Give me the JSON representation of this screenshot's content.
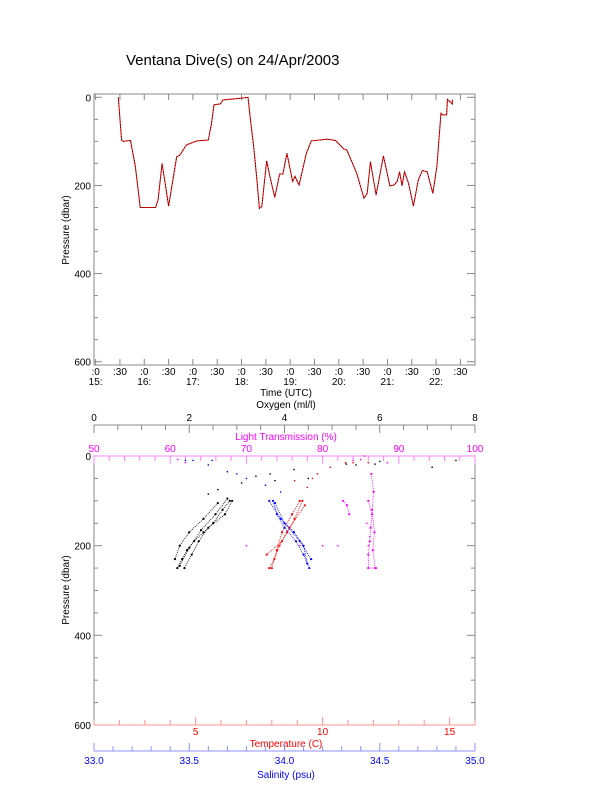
{
  "title": "Ventana Dive(s) on 24/Apr/2003",
  "chart_data": [
    {
      "type": "line",
      "xlabel": "Time (UTC)",
      "ylabel": "Pressure (dbar)",
      "ylim": [
        600,
        0
      ],
      "xlim": [
        "14:58",
        "22:48"
      ],
      "grid": false,
      "yticks": [
        "0",
        "200",
        "400",
        "600"
      ],
      "xticks": [
        {
          "time": "15:00",
          "top": ":0",
          "bottom": "15:"
        },
        {
          "time": "15:30",
          "top": ":30",
          "bottom": ""
        },
        {
          "time": "16:00",
          "top": ":0",
          "bottom": "16:"
        },
        {
          "time": "16:30",
          "top": ":30",
          "bottom": ""
        },
        {
          "time": "17:00",
          "top": ":0",
          "bottom": "17:"
        },
        {
          "time": "17:30",
          "top": ":30",
          "bottom": ""
        },
        {
          "time": "18:00",
          "top": ":0",
          "bottom": "18:"
        },
        {
          "time": "18:30",
          "top": ":30",
          "bottom": ""
        },
        {
          "time": "19:00",
          "top": ":0",
          "bottom": "19:"
        },
        {
          "time": "19:30",
          "top": ":30",
          "bottom": ""
        },
        {
          "time": "20:00",
          "top": ":0",
          "bottom": "20:"
        },
        {
          "time": "20:30",
          "top": ":30",
          "bottom": ""
        },
        {
          "time": "21:00",
          "top": ":0",
          "bottom": "21:"
        },
        {
          "time": "21:30",
          "top": ":30",
          "bottom": ""
        },
        {
          "time": "22:00",
          "top": ":0",
          "bottom": "22:"
        },
        {
          "time": "22:30",
          "top": ":30",
          "bottom": ""
        }
      ],
      "line_color": "#ff0000",
      "series": [
        {
          "points": [
            [
              "15:28",
              0
            ],
            [
              "15:32",
              97
            ],
            [
              "15:34",
              100
            ],
            [
              "15:43",
              98
            ],
            [
              "15:49",
              157
            ],
            [
              "15:52",
              203
            ],
            [
              "15:55",
              250
            ],
            [
              "16:14",
              250
            ],
            [
              "16:17",
              233
            ],
            [
              "16:22",
              150
            ],
            [
              "16:27",
              210
            ],
            [
              "16:30",
              247
            ],
            [
              "16:40",
              135
            ],
            [
              "16:44",
              131
            ],
            [
              "16:52",
              108
            ],
            [
              "17:05",
              99
            ],
            [
              "17:19",
              97
            ],
            [
              "17:23",
              59
            ],
            [
              "17:26",
              17
            ],
            [
              "17:34",
              15
            ],
            [
              "17:37",
              6
            ],
            [
              "18:00",
              2
            ],
            [
              "18:08",
              0
            ],
            [
              "18:11",
              51
            ],
            [
              "18:15",
              112
            ],
            [
              "18:19",
              188
            ],
            [
              "18:22",
              252
            ],
            [
              "18:25",
              248
            ],
            [
              "18:31",
              144
            ],
            [
              "18:35",
              180
            ],
            [
              "18:41",
              227
            ],
            [
              "18:47",
              174
            ],
            [
              "18:51",
              174
            ],
            [
              "18:56",
              127
            ],
            [
              "19:03",
              191
            ],
            [
              "19:06",
              179
            ],
            [
              "19:08",
              188
            ],
            [
              "19:11",
              199
            ],
            [
              "19:20",
              127
            ],
            [
              "19:26",
              99
            ],
            [
              "19:46",
              95
            ],
            [
              "19:56",
              98
            ],
            [
              "20:06",
              117
            ],
            [
              "20:10",
              120
            ],
            [
              "20:22",
              172
            ],
            [
              "20:31",
              229
            ],
            [
              "20:35",
              218
            ],
            [
              "20:39",
              146
            ],
            [
              "20:46",
              222
            ],
            [
              "20:55",
              133
            ],
            [
              "21:03",
              201
            ],
            [
              "21:08",
              199
            ],
            [
              "21:12",
              191
            ],
            [
              "21:15",
              169
            ],
            [
              "21:18",
              201
            ],
            [
              "21:21",
              169
            ],
            [
              "21:26",
              195
            ],
            [
              "21:32",
              247
            ],
            [
              "21:38",
              188
            ],
            [
              "21:43",
              166
            ],
            [
              "21:49",
              169
            ],
            [
              "21:56",
              218
            ],
            [
              "22:01",
              157
            ],
            [
              "22:06",
              36
            ],
            [
              "22:08",
              40
            ],
            [
              "22:13",
              40
            ],
            [
              "22:14",
              5
            ],
            [
              "22:20",
              15
            ],
            [
              "22:20",
              5
            ]
          ]
        }
      ]
    },
    {
      "type": "scatter",
      "ylabel": "Pressure (dbar)",
      "ylim": [
        600,
        0
      ],
      "yticks": [
        "0",
        "200",
        "400",
        "600"
      ],
      "grid": false,
      "series": [
        {
          "name": "Oxygen (ml/l)",
          "axis": "top",
          "range": [
            0,
            8
          ],
          "color": "#000000",
          "ticks": [
            "0",
            "2",
            "4",
            "6",
            "8"
          ],
          "casts": [
            [
              [
                2.85,
                100
              ],
              [
                2.7,
                120
              ],
              [
                2.5,
                150
              ],
              [
                2.3,
                170
              ],
              [
                2.1,
                190
              ],
              [
                1.95,
                210
              ],
              [
                1.85,
                230
              ],
              [
                1.75,
                250
              ]
            ],
            [
              [
                2.9,
                100
              ],
              [
                2.75,
                130
              ],
              [
                2.4,
                160
              ],
              [
                2.2,
                190
              ],
              [
                2.05,
                220
              ],
              [
                1.9,
                250
              ]
            ],
            [
              [
                2.6,
                105
              ],
              [
                2.3,
                140
              ],
              [
                2.0,
                170
              ],
              [
                1.8,
                200
              ],
              [
                1.7,
                230
              ]
            ],
            [
              [
                2.8,
                95
              ],
              [
                2.55,
                130
              ],
              [
                2.25,
                165
              ],
              [
                2.0,
                205
              ],
              [
                1.8,
                245
              ]
            ]
          ],
          "points": [
            [
              5.3,
              18
            ],
            [
              5.9,
              18
            ],
            [
              5.5,
              20
            ],
            [
              3.7,
              40
            ],
            [
              4.2,
              30
            ],
            [
              3.4,
              45
            ],
            [
              2.6,
              75
            ],
            [
              2.4,
              85
            ],
            [
              4.5,
              50
            ],
            [
              3.8,
              55
            ],
            [
              6.0,
              12
            ],
            [
              7.1,
              25
            ],
            [
              7.6,
              10
            ],
            [
              3.1,
              60
            ]
          ]
        },
        {
          "name": "Light Transmission (%)",
          "axis": "top2",
          "range": [
            50,
            100
          ],
          "color": "#ff00ff",
          "ticks": [
            "50",
            "60",
            "70",
            "80",
            "90",
            "100"
          ],
          "casts": [
            [
              [
                86.0,
                100
              ],
              [
                86.5,
                130
              ],
              [
                86.3,
                160
              ],
              [
                86.2,
                190
              ],
              [
                86.0,
                220
              ],
              [
                86.0,
                250
              ],
              [
                87.0,
                250
              ]
            ],
            [
              [
                82.7,
                100
              ],
              [
                83.2,
                110
              ],
              [
                83.5,
                130
              ]
            ],
            [
              [
                86.4,
                40
              ],
              [
                86.7,
                80
              ],
              [
                86.5,
                120
              ],
              [
                86.8,
                170
              ],
              [
                86.6,
                210
              ],
              [
                86.9,
                250
              ]
            ]
          ],
          "points": [
            [
              84.0,
              10
            ],
            [
              85.0,
              8
            ],
            [
              85.5,
              0
            ],
            [
              88.5,
              15
            ],
            [
              82.0,
              200
            ],
            [
              80.0,
              200
            ],
            [
              77.0,
              200
            ],
            [
              70.0,
              200
            ],
            [
              61.0,
              8
            ],
            [
              62.0,
              15
            ],
            [
              86.0,
              200
            ],
            [
              86.2,
              180
            ],
            [
              85.8,
              150
            ]
          ]
        },
        {
          "name": "Temperature (C)",
          "axis": "bottom",
          "range": [
            1,
            16
          ],
          "color": "#ff0000",
          "ticks": [
            "5",
            "10",
            "15"
          ],
          "casts": [
            [
              [
                9.2,
                100
              ],
              [
                8.9,
                140
              ],
              [
                8.6,
                170
              ],
              [
                8.3,
                200
              ],
              [
                8.1,
                230
              ],
              [
                7.9,
                250
              ]
            ],
            [
              [
                9.1,
                100
              ],
              [
                8.8,
                130
              ],
              [
                8.4,
                170
              ],
              [
                8.2,
                210
              ],
              [
                8.0,
                250
              ]
            ],
            [
              [
                9.3,
                110
              ],
              [
                8.7,
                160
              ],
              [
                8.4,
                190
              ],
              [
                7.8,
                220
              ]
            ]
          ],
          "points": [
            [
              9.8,
              40
            ],
            [
              9.6,
              50
            ],
            [
              9.4,
              70
            ],
            [
              10.9,
              15
            ],
            [
              11.2,
              15
            ],
            [
              11.8,
              15
            ],
            [
              10.3,
              25
            ],
            [
              8.9,
              55
            ]
          ]
        },
        {
          "name": "Salinity (psu)",
          "axis": "bottom2",
          "range": [
            33.0,
            35.0
          ],
          "color": "#0000ff",
          "ticks": [
            "33.0",
            "33.5",
            "34.0",
            "34.5",
            "35.0"
          ],
          "casts": [
            [
              [
                33.94,
                100
              ],
              [
                33.96,
                130
              ],
              [
                34.0,
                160
              ],
              [
                34.06,
                190
              ],
              [
                34.1,
                220
              ],
              [
                34.13,
                250
              ]
            ],
            [
              [
                33.92,
                100
              ],
              [
                33.98,
                140
              ],
              [
                34.05,
                170
              ],
              [
                34.1,
                200
              ],
              [
                34.12,
                240
              ]
            ],
            [
              [
                33.95,
                105
              ],
              [
                34.0,
                150
              ],
              [
                34.08,
                190
              ],
              [
                34.14,
                230
              ]
            ]
          ],
          "points": [
            [
              33.48,
              10
            ],
            [
              33.52,
              10
            ],
            [
              33.62,
              10
            ],
            [
              33.7,
              35
            ],
            [
              33.8,
              50
            ],
            [
              33.9,
              65
            ],
            [
              33.98,
              80
            ],
            [
              33.6,
              20
            ],
            [
              33.75,
              40
            ]
          ]
        }
      ]
    }
  ]
}
